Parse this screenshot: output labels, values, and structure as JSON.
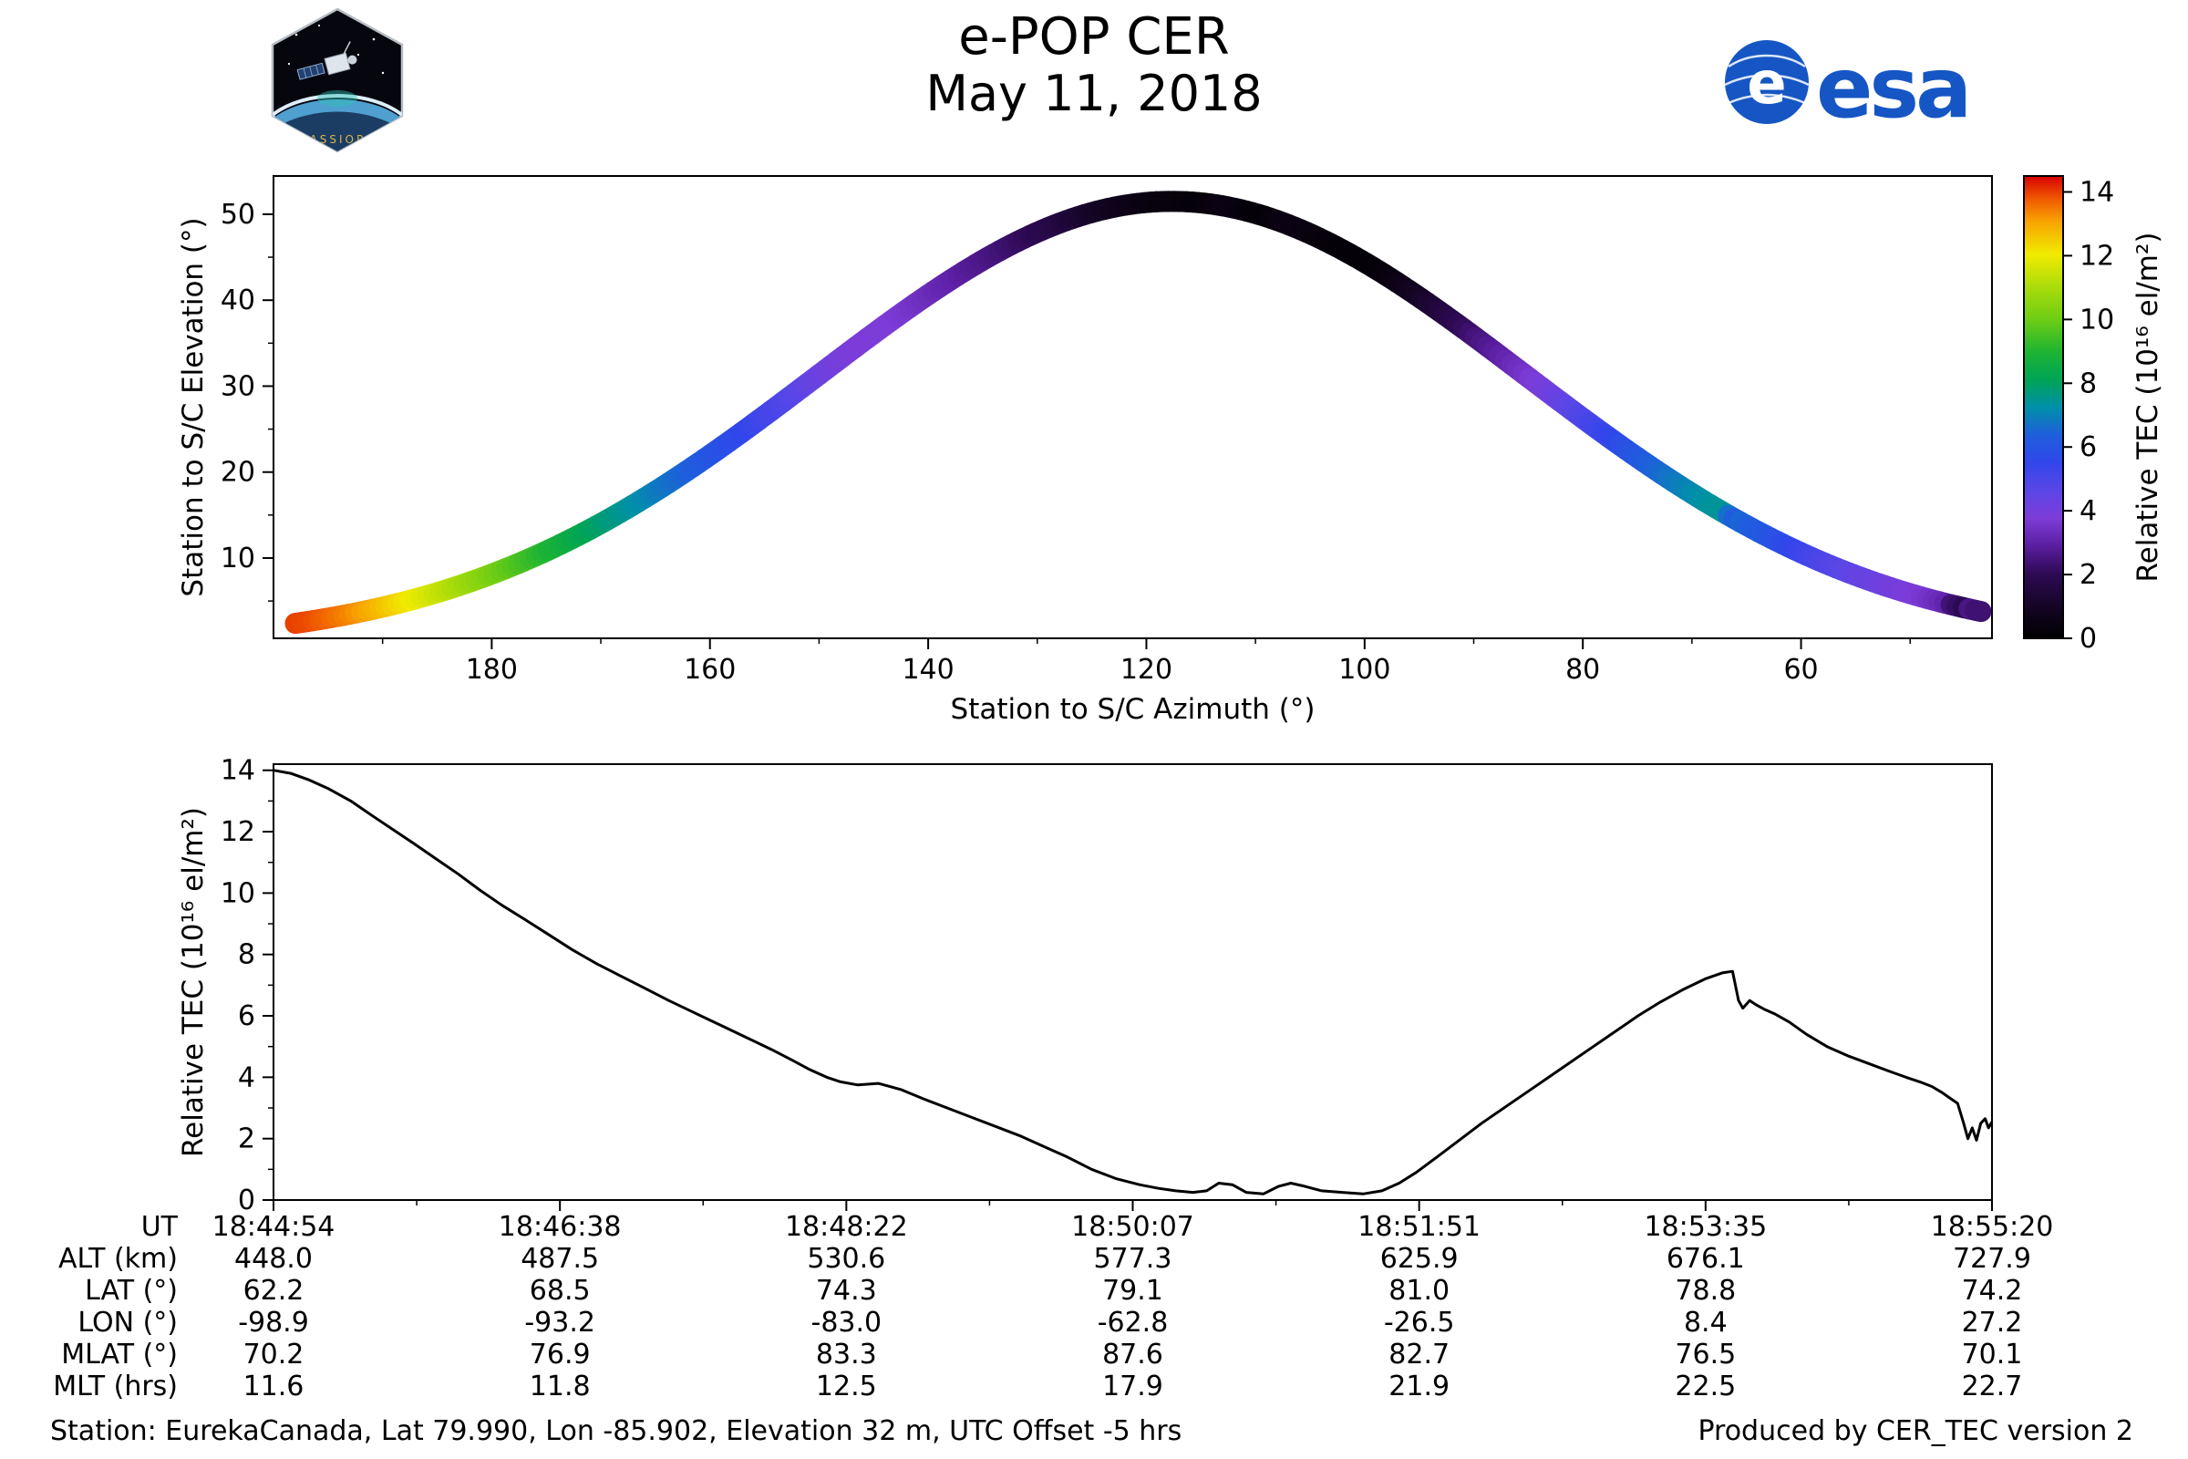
{
  "header": {
    "title": "e-POP CER",
    "subtitle": "May 11, 2018",
    "esa_logo_text": "esa",
    "cassiope_logo_text": "CASSIOPE"
  },
  "footer": {
    "station_info": "Station: EurekaCanada, Lat 79.990, Lon -85.902, Elevation 32 m, UTC Offset -5 hrs",
    "produced_by": "Produced by CER_TEC version 2"
  },
  "colors": {
    "esa_blue": "#1656c4",
    "line": "#000000",
    "axis": "#000000"
  },
  "chart_data": [
    {
      "type": "scatter",
      "name": "sky-track",
      "xlabel": "Station to S/C Azimuth (°)",
      "ylabel": "Station to S/C Elevation (°)",
      "xticks": [
        180,
        160,
        140,
        120,
        100,
        80,
        60
      ],
      "yticks": [
        10,
        20,
        30,
        40,
        50
      ],
      "xlim": [
        200,
        42.5
      ],
      "ylim": [
        0.66,
        54.45
      ],
      "x_reversed": true,
      "track": {
        "az_start": 198,
        "az_end": 43.5,
        "el_peak": 51.5,
        "peak_t": 0.52,
        "sigma": 0.21
      },
      "colorbar": {
        "label": "Relative TEC (10¹⁶ el/m²)",
        "ticks": [
          0,
          2,
          4,
          6,
          8,
          10,
          12,
          14
        ],
        "vmin": 0,
        "vmax": 14.5,
        "stops": [
          [
            0.0,
            "#000000"
          ],
          [
            0.07,
            "#150526"
          ],
          [
            0.14,
            "#2e0a55"
          ],
          [
            0.2,
            "#5a1ea0"
          ],
          [
            0.26,
            "#7d3cd8"
          ],
          [
            0.32,
            "#5a46e6"
          ],
          [
            0.38,
            "#3146eb"
          ],
          [
            0.44,
            "#1e5fdc"
          ],
          [
            0.5,
            "#0090a8"
          ],
          [
            0.56,
            "#00a455"
          ],
          [
            0.62,
            "#1eb432"
          ],
          [
            0.69,
            "#6ecd14"
          ],
          [
            0.76,
            "#aadc0a"
          ],
          [
            0.83,
            "#f0eb00"
          ],
          [
            0.9,
            "#f8a500"
          ],
          [
            0.95,
            "#f05a00"
          ],
          [
            1.0,
            "#d60000"
          ]
        ]
      }
    },
    {
      "type": "line",
      "name": "tec-vs-time",
      "ylabel": "Relative TEC (10¹⁶ el/m²)",
      "yticks": [
        0,
        2,
        4,
        6,
        8,
        10,
        12,
        14
      ],
      "ylim": [
        0,
        14.2
      ],
      "t": [
        0.0,
        0.01,
        0.02,
        0.032,
        0.045,
        0.058,
        0.07,
        0.082,
        0.095,
        0.108,
        0.12,
        0.133,
        0.146,
        0.16,
        0.174,
        0.188,
        0.202,
        0.216,
        0.23,
        0.245,
        0.26,
        0.275,
        0.29,
        0.302,
        0.312,
        0.322,
        0.33,
        0.34,
        0.352,
        0.365,
        0.378,
        0.392,
        0.406,
        0.42,
        0.434,
        0.448,
        0.462,
        0.476,
        0.49,
        0.504,
        0.515,
        0.525,
        0.535,
        0.543,
        0.55,
        0.558,
        0.566,
        0.576,
        0.585,
        0.592,
        0.6,
        0.61,
        0.622,
        0.634,
        0.645,
        0.655,
        0.665,
        0.677,
        0.69,
        0.703,
        0.716,
        0.729,
        0.742,
        0.755,
        0.768,
        0.781,
        0.794,
        0.807,
        0.82,
        0.833,
        0.843,
        0.849,
        0.8525,
        0.855,
        0.859,
        0.863,
        0.868,
        0.874,
        0.882,
        0.892,
        0.904,
        0.916,
        0.928,
        0.94,
        0.95,
        0.958,
        0.965,
        0.971,
        0.976,
        0.98,
        0.9835,
        0.986,
        0.9885,
        0.991,
        0.9935,
        0.996,
        0.998,
        1.0
      ],
      "tec": [
        14.0,
        13.9,
        13.7,
        13.4,
        13.0,
        12.5,
        12.05,
        11.6,
        11.1,
        10.6,
        10.1,
        9.6,
        9.15,
        8.65,
        8.15,
        7.7,
        7.3,
        6.9,
        6.5,
        6.1,
        5.7,
        5.3,
        4.9,
        4.55,
        4.25,
        4.0,
        3.85,
        3.75,
        3.8,
        3.6,
        3.3,
        3.0,
        2.7,
        2.4,
        2.1,
        1.75,
        1.4,
        1.0,
        0.7,
        0.5,
        0.38,
        0.3,
        0.25,
        0.3,
        0.55,
        0.5,
        0.25,
        0.2,
        0.45,
        0.55,
        0.45,
        0.3,
        0.25,
        0.2,
        0.3,
        0.55,
        0.9,
        1.4,
        1.95,
        2.5,
        3.0,
        3.5,
        4.0,
        4.5,
        5.0,
        5.5,
        6.0,
        6.45,
        6.85,
        7.2,
        7.4,
        7.45,
        6.5,
        6.25,
        6.5,
        6.35,
        6.2,
        6.05,
        5.8,
        5.4,
        5.0,
        4.7,
        4.45,
        4.2,
        4.0,
        3.85,
        3.7,
        3.5,
        3.3,
        3.15,
        2.5,
        2.0,
        2.35,
        1.95,
        2.5,
        2.65,
        2.35,
        2.55
      ],
      "xaxis_table": {
        "row_labels": [
          "UT",
          "ALT (km)",
          "LAT (°)",
          "LON (°)",
          "MLAT (°)",
          "MLT (hrs)"
        ],
        "rows": [
          [
            "18:44:54",
            "18:46:38",
            "18:48:22",
            "18:50:07",
            "18:51:51",
            "18:53:35",
            "18:55:20"
          ],
          [
            "448.0",
            "487.5",
            "530.6",
            "577.3",
            "625.9",
            "676.1",
            "727.9"
          ],
          [
            "62.2",
            "68.5",
            "74.3",
            "79.1",
            "81.0",
            "78.8",
            "74.2"
          ],
          [
            "-98.9",
            "-93.2",
            "-83.0",
            "-62.8",
            "-26.5",
            "8.4",
            "27.2"
          ],
          [
            "70.2",
            "76.9",
            "83.3",
            "87.6",
            "82.7",
            "76.5",
            "70.1"
          ],
          [
            "11.6",
            "11.8",
            "12.5",
            "17.9",
            "21.9",
            "22.5",
            "22.7"
          ]
        ]
      }
    }
  ]
}
